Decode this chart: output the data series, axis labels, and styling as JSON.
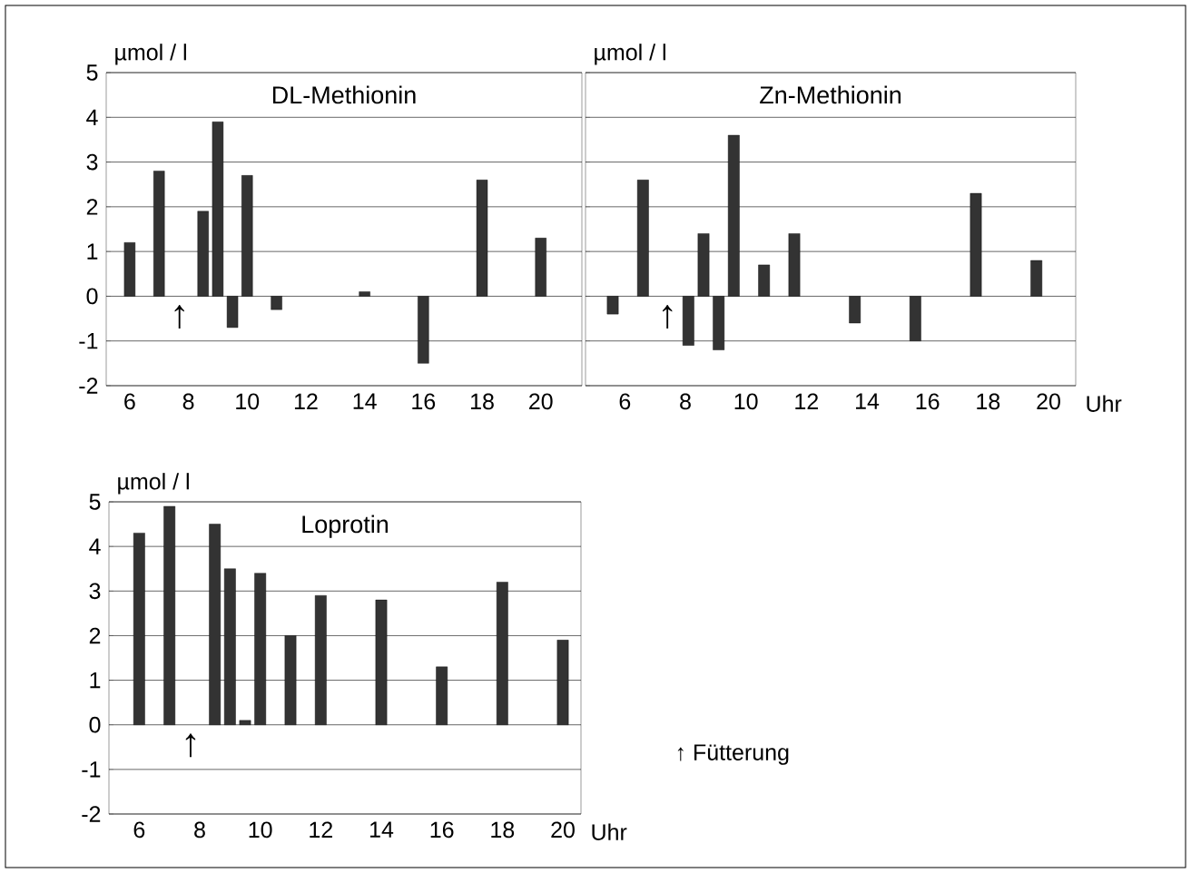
{
  "chart_data": [
    {
      "type": "bar",
      "title": "DL-Methionin",
      "ylabel": "µmol / l",
      "x": [
        6,
        7,
        8.5,
        9,
        9.5,
        10,
        11,
        14,
        16,
        18,
        20
      ],
      "values": [
        1.2,
        2.8,
        1.9,
        3.9,
        -0.7,
        2.7,
        -0.3,
        0.1,
        -1.5,
        2.6,
        1.3
      ],
      "color": "#333333",
      "xlim": [
        5.2,
        21.4
      ],
      "ylim": [
        -2,
        5
      ],
      "xticks": [
        6,
        8,
        10,
        12,
        14,
        16,
        18,
        20
      ],
      "yticks": [
        -2,
        -1,
        0,
        1,
        2,
        3,
        4,
        5
      ],
      "grid": "y",
      "annotations": [
        "↑"
      ]
    },
    {
      "type": "bar",
      "title": "Zn-Methionin",
      "ylabel": "µmol / l",
      "xlabel": "Uhr",
      "x": [
        5.6,
        6.6,
        8.1,
        8.6,
        9.1,
        9.6,
        10.6,
        11.6,
        13.6,
        15.6,
        17.6,
        19.6
      ],
      "values": [
        -0.4,
        2.6,
        -1.1,
        1.4,
        -1.2,
        3.6,
        0.7,
        1.4,
        -0.6,
        -1.0,
        2.3,
        0.8
      ],
      "color": "#333333",
      "xlim": [
        4.7,
        20.9
      ],
      "ylim": [
        -2,
        5
      ],
      "xticks": [
        6,
        8,
        10,
        12,
        14,
        16,
        18,
        20
      ],
      "yticks": [
        -2,
        -1,
        0,
        1,
        2,
        3,
        4,
        5
      ],
      "grid": "y",
      "tick_labels": "x",
      "annotations": [
        "↑"
      ]
    },
    {
      "type": "bar",
      "title": "Loprotin",
      "ylabel": "µmol / l",
      "xlabel": "Uhr",
      "x": [
        6,
        7,
        8.5,
        9,
        9.5,
        10,
        11,
        12,
        14,
        16,
        18,
        20
      ],
      "values": [
        4.3,
        4.9,
        4.5,
        3.5,
        0.1,
        3.4,
        2.0,
        2.9,
        2.8,
        1.3,
        3.2,
        1.9
      ],
      "color": "#333333",
      "xlim": [
        5.0,
        20.6
      ],
      "ylim": [
        -2,
        5
      ],
      "xticks": [
        6,
        8,
        10,
        12,
        14,
        16,
        18,
        20
      ],
      "yticks": [
        -2,
        -1,
        0,
        1,
        2,
        3,
        4,
        5
      ],
      "grid": "y",
      "annotations": [
        "↑",
        "↑ Fütterung"
      ]
    }
  ]
}
